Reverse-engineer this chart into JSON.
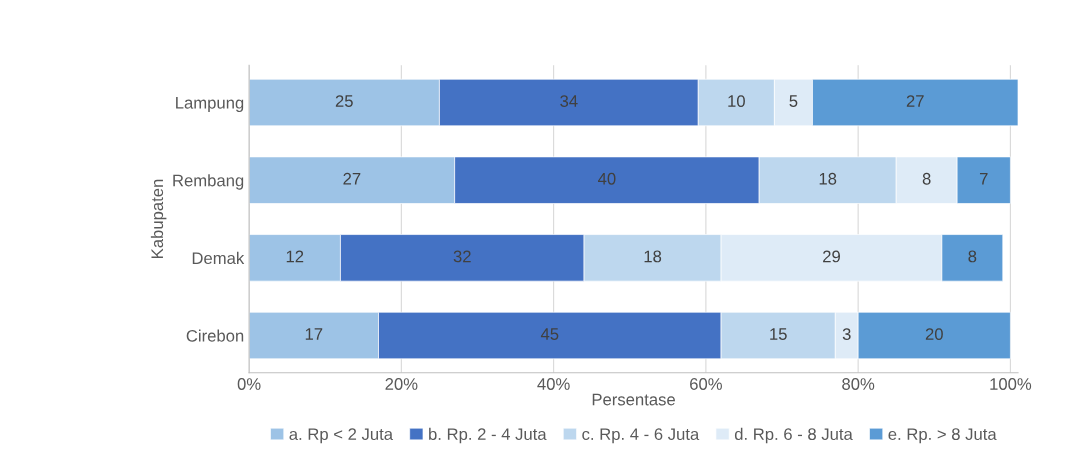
{
  "chart_data": {
    "type": "bar",
    "orientation": "horizontal",
    "stacked": true,
    "categories": [
      "Lampung",
      "Rembang",
      "Demak",
      "Cirebon"
    ],
    "series": [
      {
        "name": "a. Rp < 2 Juta",
        "color": "#9dc3e6",
        "values": [
          25,
          27,
          12,
          17
        ]
      },
      {
        "name": "b. Rp. 2 - 4 Juta",
        "color": "#4472c4",
        "values": [
          34,
          40,
          32,
          45
        ]
      },
      {
        "name": "c. Rp. 4 - 6 Juta",
        "color": "#bdd7ee",
        "values": [
          10,
          18,
          18,
          15
        ]
      },
      {
        "name": "d. Rp. 6 - 8 Juta",
        "color": "#deebf7",
        "values": [
          5,
          8,
          29,
          3
        ]
      },
      {
        "name": "e. Rp. > 8 Juta",
        "color": "#5b9bd5",
        "values": [
          27,
          7,
          8,
          20
        ]
      }
    ],
    "xlabel": "Persentase",
    "ylabel": "Kabupaten",
    "xlim": [
      0,
      101
    ],
    "xticks": [
      {
        "value": 0,
        "label": "0%"
      },
      {
        "value": 20,
        "label": "20%"
      },
      {
        "value": 40,
        "label": "40%"
      },
      {
        "value": 60,
        "label": "60%"
      },
      {
        "value": 80,
        "label": "80%"
      },
      {
        "value": 100,
        "label": "100%"
      }
    ],
    "data_labels": true,
    "grid": "x",
    "legend": "bottom"
  }
}
